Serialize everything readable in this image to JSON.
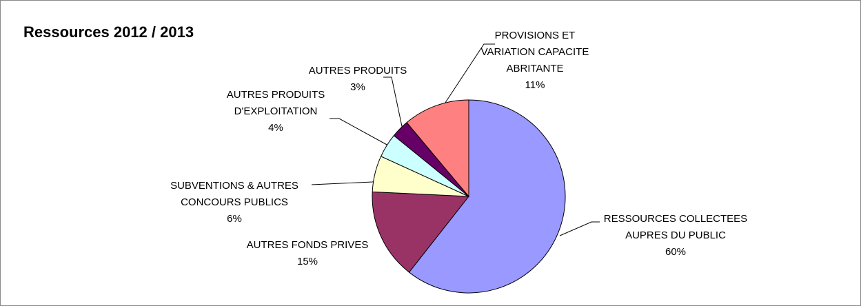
{
  "chart_data": {
    "type": "pie",
    "title": "Ressources 2012 / 2013",
    "categories": [
      "RESSOURCES COLLECTEES AUPRES DU PUBLIC",
      "AUTRES FONDS PRIVES",
      "SUBVENTIONS & AUTRES CONCOURS PUBLICS",
      "AUTRES PRODUITS D'EXPLOITATION",
      "AUTRES PRODUITS",
      "PROVISIONS ET VARIATION CAPACITE ABRITANTE"
    ],
    "values": [
      60,
      15,
      6,
      4,
      3,
      11
    ],
    "value_labels": [
      "60%",
      "15%",
      "6%",
      "4%",
      "3%",
      "11%"
    ],
    "colors": [
      "#9999ff",
      "#993366",
      "#ffffcc",
      "#ccffff",
      "#660066",
      "#ff8080"
    ]
  }
}
